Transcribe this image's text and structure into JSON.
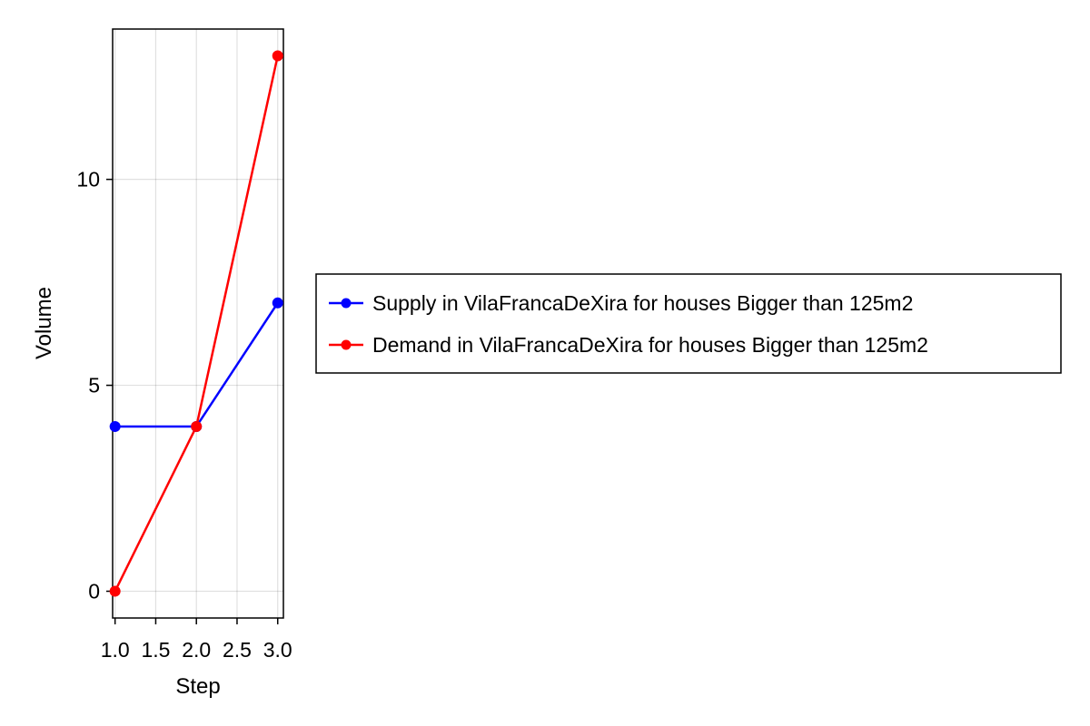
{
  "chart_data": {
    "type": "line",
    "xlabel": "Step",
    "ylabel": "Volume",
    "xlim": [
      0.97,
      3.07
    ],
    "ylim": [
      -0.65,
      13.65
    ],
    "xticks": [
      1.0,
      1.5,
      2.0,
      2.5,
      3.0
    ],
    "xtick_labels": [
      "1.0",
      "1.5",
      "2.0",
      "2.5",
      "3.0"
    ],
    "yticks": [
      0,
      5,
      10
    ],
    "ytick_labels": [
      "0",
      "5",
      "10"
    ],
    "grid": true,
    "legend_position": "right",
    "series": [
      {
        "name": "Supply in VilaFrancaDeXira for houses Bigger than 125m2",
        "color": "#0000ff",
        "x": [
          1,
          2,
          3
        ],
        "y": [
          4,
          4,
          7
        ]
      },
      {
        "name": "Demand in VilaFrancaDeXira for houses Bigger than 125m2",
        "color": "#ff0000",
        "x": [
          1,
          2,
          3
        ],
        "y": [
          0,
          4,
          13
        ]
      }
    ]
  }
}
